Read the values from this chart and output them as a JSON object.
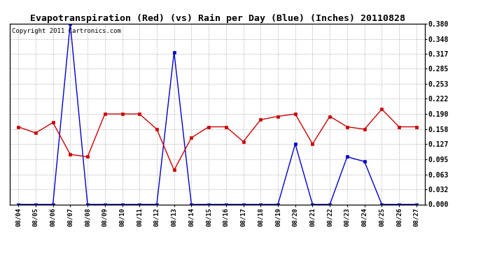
{
  "title": "Evapotranspiration (Red) (vs) Rain per Day (Blue) (Inches) 20110828",
  "copyright": "Copyright 2011 Cartronics.com",
  "dates": [
    "08/04",
    "08/05",
    "08/06",
    "08/07",
    "08/08",
    "08/09",
    "08/10",
    "08/11",
    "08/12",
    "08/13",
    "08/14",
    "08/15",
    "08/16",
    "08/17",
    "08/18",
    "08/19",
    "08/20",
    "08/21",
    "08/22",
    "08/23",
    "08/24",
    "08/25",
    "08/26",
    "08/27"
  ],
  "red_et": [
    0.163,
    0.15,
    0.172,
    0.105,
    0.1,
    0.19,
    0.19,
    0.19,
    0.158,
    0.072,
    0.14,
    0.163,
    0.163,
    0.132,
    0.178,
    0.185,
    0.19,
    0.127,
    0.185,
    0.163,
    0.158,
    0.2,
    0.163,
    0.163
  ],
  "blue_rain": [
    0.0,
    0.0,
    0.0,
    0.38,
    0.0,
    0.0,
    0.0,
    0.0,
    0.0,
    0.32,
    0.0,
    0.0,
    0.0,
    0.0,
    0.0,
    0.0,
    0.127,
    0.0,
    0.0,
    0.1,
    0.09,
    0.0,
    0.0,
    0.0
  ],
  "ylim": [
    0.0,
    0.38
  ],
  "yticks": [
    0.0,
    0.032,
    0.063,
    0.095,
    0.127,
    0.158,
    0.19,
    0.222,
    0.253,
    0.285,
    0.317,
    0.348,
    0.38
  ],
  "red_color": "#cc0000",
  "blue_color": "#0000cc",
  "bg_color": "#ffffff",
  "grid_color": "#bbbbbb",
  "title_fontsize": 9.5,
  "copyright_fontsize": 6.5
}
